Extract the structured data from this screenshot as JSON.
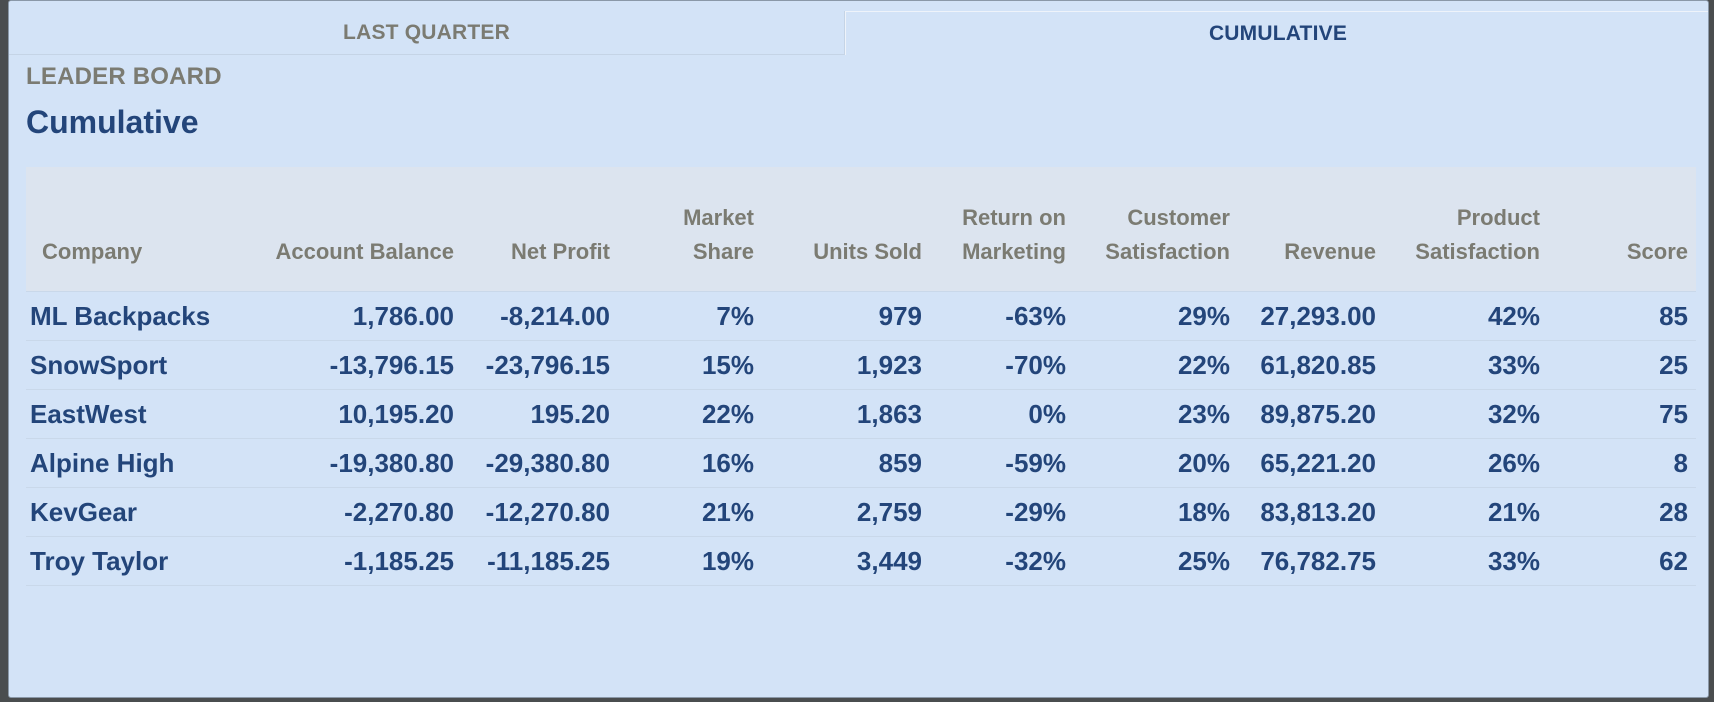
{
  "tabs": [
    {
      "label": "LAST QUARTER",
      "active": false
    },
    {
      "label": "CUMULATIVE",
      "active": true
    }
  ],
  "section_label": "LEADER BOARD",
  "title": "Cumulative",
  "table": {
    "headers": {
      "company": [
        "",
        "Company"
      ],
      "account_balance": [
        "",
        "Account Balance"
      ],
      "net_profit": [
        "",
        "Net Profit"
      ],
      "market_share": [
        "Market",
        "Share"
      ],
      "units_sold": [
        "",
        "Units Sold"
      ],
      "return_on_marketing": [
        "Return on",
        "Marketing"
      ],
      "customer_satisfaction": [
        "Customer",
        "Satisfaction"
      ],
      "revenue": [
        "",
        "Revenue"
      ],
      "product_satisfaction": [
        "Product",
        "Satisfaction"
      ],
      "score": [
        "",
        "Score"
      ]
    },
    "rows": [
      [
        "ML Backpacks",
        "1,786.00",
        "-8,214.00",
        "7%",
        "979",
        "-63%",
        "29%",
        "27,293.00",
        "42%",
        "85"
      ],
      [
        "SnowSport",
        "-13,796.15",
        "-23,796.15",
        "15%",
        "1,923",
        "-70%",
        "22%",
        "61,820.85",
        "33%",
        "25"
      ],
      [
        "EastWest",
        "10,195.20",
        "195.20",
        "22%",
        "1,863",
        "0%",
        "23%",
        "89,875.20",
        "32%",
        "75"
      ],
      [
        "Alpine High",
        "-19,380.80",
        "-29,380.80",
        "16%",
        "859",
        "-59%",
        "20%",
        "65,221.20",
        "26%",
        "8"
      ],
      [
        "KevGear",
        "-2,270.80",
        "-12,270.80",
        "21%",
        "2,759",
        "-29%",
        "18%",
        "83,813.20",
        "21%",
        "28"
      ],
      [
        "Troy Taylor",
        "-1,185.25",
        "-11,185.25",
        "19%",
        "3,449",
        "-32%",
        "25%",
        "76,782.75",
        "33%",
        "62"
      ]
    ]
  },
  "colors": {
    "background": "#d3e3f7",
    "header_row": "#dce4ef",
    "title_blue": "#23457a",
    "label_gray": "#7b7b72"
  }
}
